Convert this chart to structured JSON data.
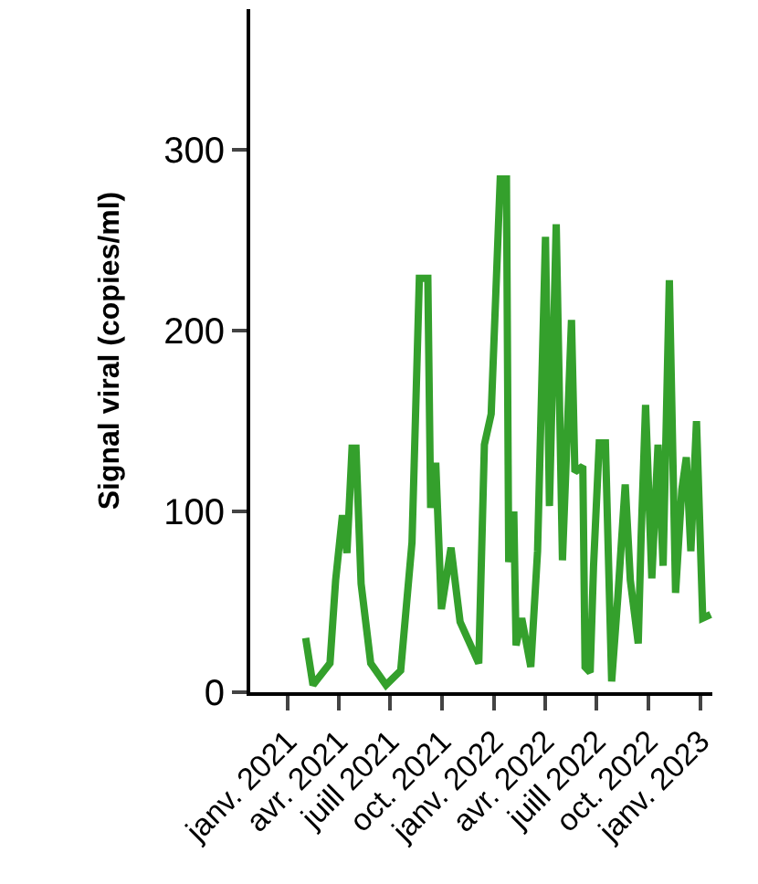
{
  "chart_data": {
    "type": "line",
    "ylabel": "Signal viral (copies/ml)",
    "xlim": [
      "2020-10-27",
      "2023-01-22"
    ],
    "ylim": [
      0,
      378
    ],
    "yticks": [
      0,
      100,
      200,
      300
    ],
    "xticks": [
      {
        "value": "2021-01-01",
        "label": "janv. 2021"
      },
      {
        "value": "2021-04-01",
        "label": "avr. 2021"
      },
      {
        "value": "2021-07-01",
        "label": "juill 2021"
      },
      {
        "value": "2021-10-01",
        "label": "oct. 2021"
      },
      {
        "value": "2022-01-01",
        "label": "janv. 2022"
      },
      {
        "value": "2022-04-01",
        "label": "avr. 2022"
      },
      {
        "value": "2022-07-01",
        "label": "juill 2022"
      },
      {
        "value": "2022-10-01",
        "label": "oct. 2022"
      },
      {
        "value": "2023-01-01",
        "label": "janv. 2023"
      }
    ],
    "marker": "none",
    "line_style": "solid",
    "series": [
      {
        "color": "#34a02c",
        "x": [
          "2021-02-02",
          "2021-02-15",
          "2021-03-17",
          "2021-03-27",
          "2021-04-08",
          "2021-04-16",
          "2021-04-25",
          "2021-05-02",
          "2021-05-11",
          "2021-05-28",
          "2021-06-24",
          "2021-07-20",
          "2021-08-09",
          "2021-08-22",
          "2021-09-06",
          "2021-09-11",
          "2021-09-20",
          "2021-09-30",
          "2021-10-17",
          "2021-11-02",
          "2021-12-05",
          "2021-12-15",
          "2021-12-27",
          "2022-01-12",
          "2022-01-23",
          "2022-01-27",
          "2022-02-05",
          "2022-02-09",
          "2022-02-19",
          "2022-03-07",
          "2022-03-19",
          "2022-04-02",
          "2022-04-09",
          "2022-04-21",
          "2022-05-02",
          "2022-05-18",
          "2022-05-24",
          "2022-06-07",
          "2022-06-11",
          "2022-06-20",
          "2022-06-26",
          "2022-07-06",
          "2022-07-17",
          "2022-07-28",
          "2022-08-08",
          "2022-08-21",
          "2022-08-30",
          "2022-09-13",
          "2022-09-18",
          "2022-09-26",
          "2022-10-07",
          "2022-10-18",
          "2022-10-27",
          "2022-11-07",
          "2022-11-18",
          "2022-11-29",
          "2022-12-07",
          "2022-12-15",
          "2022-12-25",
          "2023-01-05",
          "2023-01-19"
        ],
        "values": [
          30,
          4,
          16,
          62,
          98,
          77,
          135,
          135,
          60,
          16,
          4,
          12,
          83,
          229,
          229,
          102,
          127,
          46,
          80,
          39,
          16,
          137,
          154,
          284,
          284,
          72,
          100,
          26,
          41,
          14,
          78,
          252,
          103,
          259,
          73,
          206,
          122,
          125,
          14,
          11,
          70,
          138,
          138,
          6,
          53,
          115,
          62,
          27,
          85,
          159,
          63,
          137,
          70,
          228,
          55,
          112,
          130,
          78,
          150,
          41,
          43
        ]
      }
    ]
  }
}
